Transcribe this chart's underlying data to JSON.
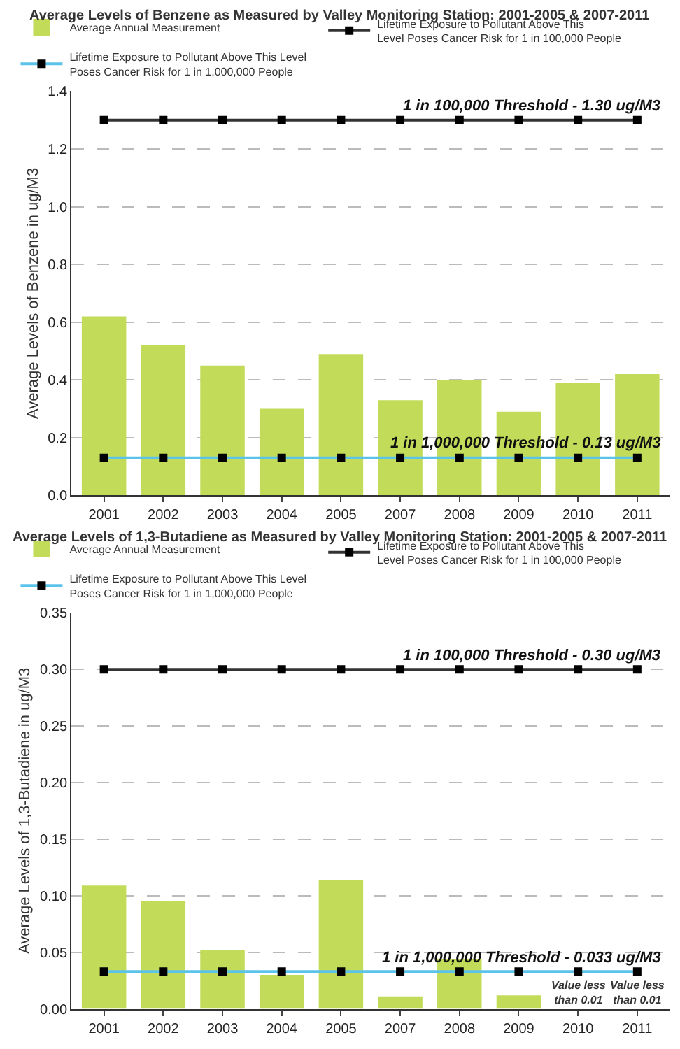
{
  "chart_data": [
    {
      "type": "bar",
      "title": "Average Levels of Benzene as Measured by Valley Monitoring Station: 2001-2005 & 2007-2011",
      "ylabel": "Average Levels of Benzene in ug/M3",
      "categories": [
        "2001",
        "2002",
        "2003",
        "2004",
        "2005",
        "2007",
        "2008",
        "2009",
        "2010",
        "2011"
      ],
      "series": [
        {
          "name": "Average Annual Measurement",
          "color": "#c2dc5a",
          "values": [
            0.62,
            0.52,
            0.45,
            0.3,
            0.49,
            0.33,
            0.4,
            0.29,
            0.39,
            0.42
          ]
        },
        {
          "type": "line",
          "name": "Lifetime Exposure to Pollutant Above This Level Poses Cancer Risk for 1 in 100,000 People",
          "color": "#333333",
          "values": [
            1.3,
            1.3,
            1.3,
            1.3,
            1.3,
            1.3,
            1.3,
            1.3,
            1.3,
            1.3
          ]
        },
        {
          "type": "line",
          "name": "Lifetime Exposure to Pollutant Above This Level Poses Cancer Risk for 1 in 1,000,000 People",
          "color": "#5bc3ea",
          "values": [
            0.13,
            0.13,
            0.13,
            0.13,
            0.13,
            0.13,
            0.13,
            0.13,
            0.13,
            0.13
          ]
        }
      ],
      "annotations": [
        {
          "text": "1 in 100,000 Threshold - 1.30 ug/M3",
          "x": "2011",
          "y": 1.3
        },
        {
          "text": "1 in 1,000,000 Threshold - 0.13 ug/M3",
          "x": "2011",
          "y": 0.13
        }
      ],
      "ylim": [
        0,
        1.4
      ],
      "yticks": [
        {
          "value": 0,
          "label": "0.0"
        },
        0.2,
        0.4,
        0.6,
        0.8,
        {
          "value": 1,
          "label": "1.0"
        },
        1.2,
        1.4
      ],
      "grid": "y",
      "legend": "top",
      "marker": "square"
    },
    {
      "type": "bar",
      "title": "Average Levels of 1,3-Butadiene as Measured by Valley Monitoring Station: 2001-2005 & 2007-2011",
      "ylabel": "Average Levels of 1,3-Butadiene in ug/M3",
      "categories": [
        "2001",
        "2002",
        "2003",
        "2004",
        "2005",
        "2007",
        "2008",
        "2009",
        "2010",
        "2011"
      ],
      "series": [
        {
          "name": "Average Annual Measurement",
          "color": "#c2dc5a",
          "values": [
            0.109,
            0.095,
            0.052,
            0.03,
            0.114,
            0.011,
            0.044,
            0.012,
            null,
            null
          ]
        },
        {
          "type": "line",
          "name": "Lifetime Exposure to Pollutant Above This Level Poses Cancer Risk for 1 in 100,000 People",
          "color": "#333333",
          "values": [
            0.3,
            0.3,
            0.3,
            0.3,
            0.3,
            0.3,
            0.3,
            0.3,
            0.3,
            0.3
          ]
        },
        {
          "type": "line",
          "name": "Lifetime Exposure to Pollutant Above This Level Poses Cancer Risk for 1 in 1,000,000 People",
          "color": "#5bc3ea",
          "values": [
            0.033,
            0.033,
            0.033,
            0.033,
            0.033,
            0.033,
            0.033,
            0.033,
            0.033,
            0.033
          ]
        }
      ],
      "annotations": [
        {
          "text": "1 in 100,000 Threshold - 0.30 ug/M3",
          "x": "2011",
          "y": 0.3
        },
        {
          "text": "1 in 1,000,000 Threshold - 0.033 ug/M3",
          "x": "2011",
          "y": 0.033
        },
        "Value less than 0.01",
        "Value less than 0.01"
      ],
      "ylim": [
        0,
        0.35
      ],
      "yticks": [
        {
          "value": 0,
          "label": "0.00"
        },
        0.05,
        {
          "value": 0.1,
          "label": "0.10"
        },
        0.15,
        {
          "value": 0.2,
          "label": "0.20"
        },
        0.25,
        {
          "value": 0.3,
          "label": "0.30"
        },
        0.35
      ],
      "grid": "y",
      "legend": "top",
      "marker": "square"
    }
  ]
}
